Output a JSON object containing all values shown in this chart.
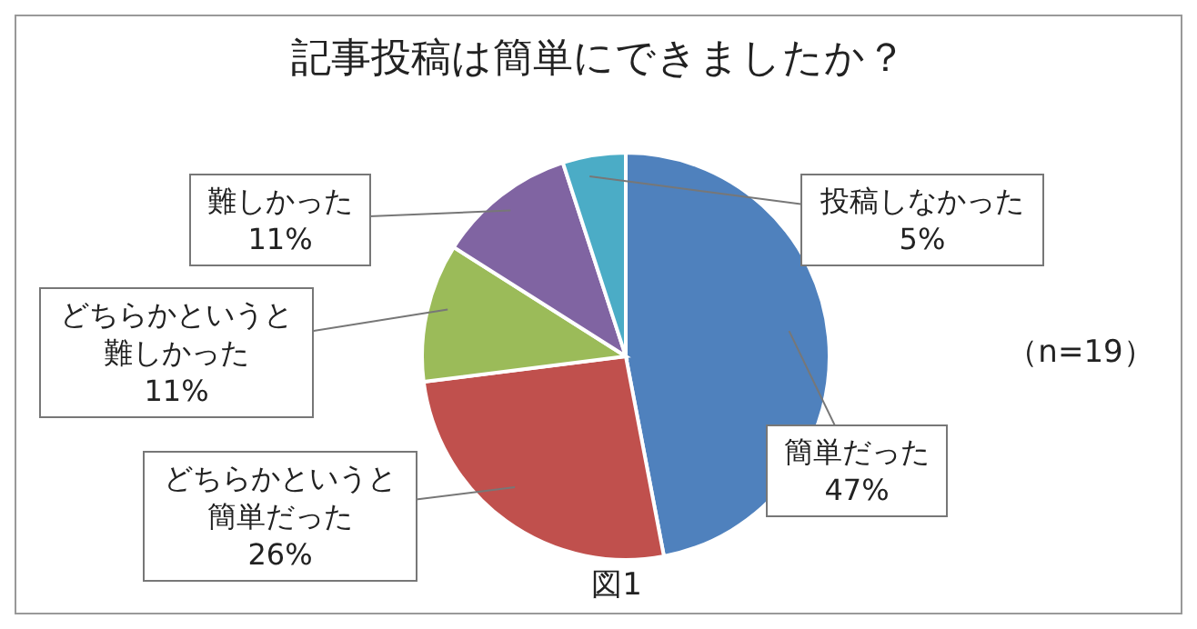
{
  "chart_data": {
    "type": "pie",
    "title": "記事投稿は簡単にできましたか？",
    "categories": [
      "簡単だった",
      "どちらかというと簡単だった",
      "どちらかというと難しかった",
      "難しかった",
      "投稿しなかった"
    ],
    "values": [
      47,
      26,
      11,
      11,
      5
    ],
    "colors": [
      "#4f81bd",
      "#c0504d",
      "#9bbb59",
      "#8064a2",
      "#4bacc6"
    ],
    "value_labels": [
      "47%",
      "26%",
      "11%",
      "11%",
      "5%"
    ],
    "annotations": [
      "（n=19）",
      "図1"
    ]
  }
}
